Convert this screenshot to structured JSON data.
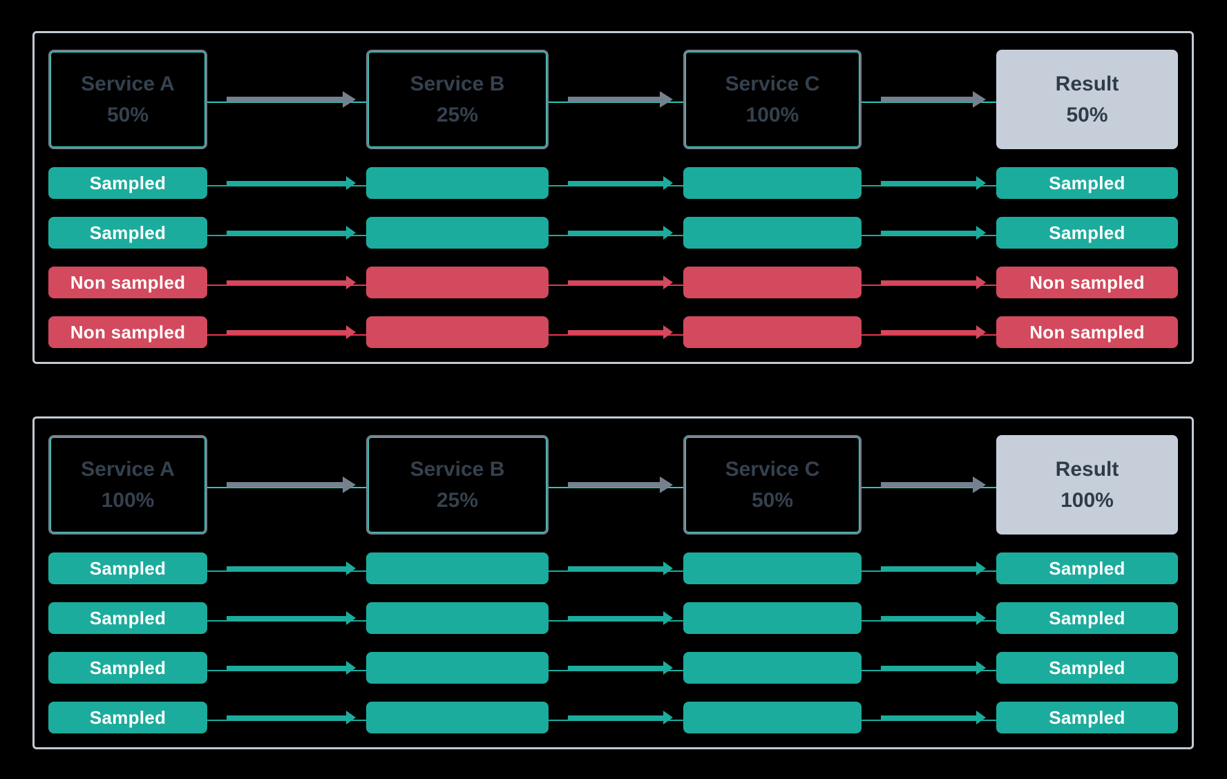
{
  "colors": {
    "bg": "#000000",
    "panel-border": "#C2CAD3",
    "box-border": "#75818F",
    "box-glow": "#2EDFCE",
    "box-text": "#35414E",
    "result-bg": "#C6CEDA",
    "result-text": "#2E3C49",
    "teal": "#1CAC9D",
    "red": "#D3495D",
    "arrow-gray": "#75818F",
    "rail-teal": "#2BC8B9",
    "rail-red": "#E8354F",
    "pill-text": "#FFFFFF"
  },
  "panels": [
    {
      "services": [
        {
          "name": "Service A",
          "rate": "50%"
        },
        {
          "name": "Service B",
          "rate": "25%"
        },
        {
          "name": "Service C",
          "rate": "100%"
        }
      ],
      "result": {
        "name": "Result",
        "rate": "50%"
      },
      "rows": [
        {
          "label": "Sampled",
          "type": "sampled"
        },
        {
          "label": "Sampled",
          "type": "sampled"
        },
        {
          "label": "Non sampled",
          "type": "non-sampled"
        },
        {
          "label": "Non sampled",
          "type": "non-sampled"
        }
      ]
    },
    {
      "services": [
        {
          "name": "Service A",
          "rate": "100%"
        },
        {
          "name": "Service B",
          "rate": "25%"
        },
        {
          "name": "Service C",
          "rate": "50%"
        }
      ],
      "result": {
        "name": "Result",
        "rate": "100%"
      },
      "rows": [
        {
          "label": "Sampled",
          "type": "sampled"
        },
        {
          "label": "Sampled",
          "type": "sampled"
        },
        {
          "label": "Sampled",
          "type": "sampled"
        },
        {
          "label": "Sampled",
          "type": "sampled"
        }
      ]
    }
  ]
}
